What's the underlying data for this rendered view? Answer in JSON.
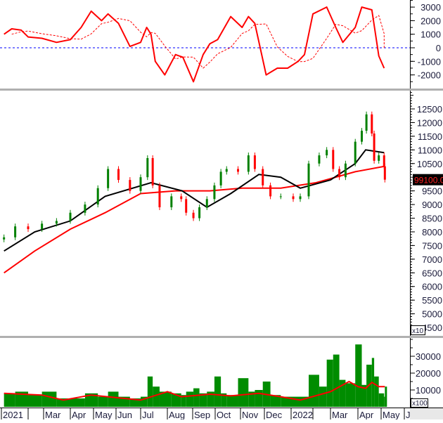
{
  "chart_data": {
    "type": "candlestick-with-indicators",
    "grid": false,
    "month_ticks": [
      {
        "date": "2021-01-01",
        "label": "2021"
      },
      {
        "date": "2021-02-01",
        "label": ""
      },
      {
        "date": "2021-03-01",
        "label": "Mar"
      },
      {
        "date": "2021-04-01",
        "label": "Apr"
      },
      {
        "date": "2021-05-01",
        "label": "May"
      },
      {
        "date": "2021-06-01",
        "label": "Jun"
      },
      {
        "date": "2021-07-01",
        "label": "Jul"
      },
      {
        "date": "2021-08-01",
        "label": "Aug"
      },
      {
        "date": "2021-09-01",
        "label": "Sep"
      },
      {
        "date": "2021-10-01",
        "label": "Oct"
      },
      {
        "date": "2021-11-01",
        "label": "Nov"
      },
      {
        "date": "2021-12-01",
        "label": "Dec"
      },
      {
        "date": "2022-01-01",
        "label": "2022"
      },
      {
        "date": "2022-02-01",
        "label": ""
      },
      {
        "date": "2022-03-01",
        "label": "Mar"
      },
      {
        "date": "2022-04-01",
        "label": "Apr"
      },
      {
        "date": "2022-05-01",
        "label": "May"
      },
      {
        "date": "2022-06-01",
        "label": "J"
      }
    ],
    "macd_panel": {
      "ylim": [
        -2500,
        3500
      ],
      "ticks": [
        3000,
        2000,
        1000,
        0,
        -1000,
        -2000
      ],
      "zero_line_color": "#0000ff",
      "line_color": "#ff0000",
      "macd": [
        [
          "2021-01-04",
          1000
        ],
        [
          "2021-01-13",
          1400
        ],
        [
          "2021-01-24",
          1300
        ],
        [
          "2021-02-01",
          800
        ],
        [
          "2021-02-26",
          700
        ],
        [
          "2021-03-16",
          400
        ],
        [
          "2021-04-01",
          600
        ],
        [
          "2021-04-15",
          1500
        ],
        [
          "2021-04-28",
          2700
        ],
        [
          "2021-05-12",
          2000
        ],
        [
          "2021-05-21",
          2500
        ],
        [
          "2021-06-04",
          1800
        ],
        [
          "2021-06-18",
          100
        ],
        [
          "2021-07-01",
          400
        ],
        [
          "2021-07-08",
          1500
        ],
        [
          "2021-07-13",
          1000
        ],
        [
          "2021-07-18",
          -1000
        ],
        [
          "2021-07-29",
          -2000
        ],
        [
          "2021-08-11",
          -500
        ],
        [
          "2021-08-20",
          -700
        ],
        [
          "2021-09-02",
          -2500
        ],
        [
          "2021-09-15",
          -500
        ],
        [
          "2021-09-24",
          300
        ],
        [
          "2021-10-04",
          600
        ],
        [
          "2021-10-20",
          2300
        ],
        [
          "2021-11-03",
          1500
        ],
        [
          "2021-11-11",
          2300
        ],
        [
          "2021-11-19",
          1800
        ],
        [
          "2021-12-03",
          -2000
        ],
        [
          "2021-12-16",
          -1500
        ],
        [
          "2021-12-28",
          -1500
        ],
        [
          "2022-01-11",
          -1000
        ],
        [
          "2022-01-20",
          -500
        ],
        [
          "2022-02-01",
          2500
        ],
        [
          "2022-02-23",
          3000
        ],
        [
          "2022-03-07",
          1500
        ],
        [
          "2022-03-15",
          400
        ],
        [
          "2022-03-29",
          1500
        ],
        [
          "2022-04-06",
          3000
        ],
        [
          "2022-04-19",
          2800
        ],
        [
          "2022-04-28",
          -600
        ],
        [
          "2022-05-05",
          -1500
        ]
      ]
    },
    "price_panel": {
      "ylim": [
        4300,
        13100
      ],
      "ticks": [
        12500,
        12000,
        11500,
        11000,
        10500,
        9500,
        9000,
        8500,
        8000,
        7500,
        7000,
        6500,
        6000,
        5500,
        5000,
        4500
      ],
      "multiplier_label": "x10",
      "last_price_label": "99100.00",
      "up_color": "#008000",
      "down_color": "#ff0000",
      "close": [
        [
          "2021-01-04",
          7800
        ],
        [
          "2021-01-17",
          8200
        ],
        [
          "2021-02-01",
          8100
        ],
        [
          "2021-02-26",
          8300
        ],
        [
          "2021-03-16",
          8400
        ],
        [
          "2021-04-01",
          8700
        ],
        [
          "2021-04-20",
          9000
        ],
        [
          "2021-05-07",
          9600
        ],
        [
          "2021-05-21",
          10300
        ],
        [
          "2021-06-04",
          9900
        ],
        [
          "2021-06-18",
          9500
        ],
        [
          "2021-07-01",
          10000
        ],
        [
          "2021-07-09",
          10700
        ],
        [
          "2021-07-15",
          9700
        ],
        [
          "2021-07-23",
          8900
        ],
        [
          "2021-08-06",
          9300
        ],
        [
          "2021-08-18",
          9200
        ],
        [
          "2021-08-24",
          8700
        ],
        [
          "2021-09-02",
          8500
        ],
        [
          "2021-09-10",
          8900
        ],
        [
          "2021-09-20",
          9200
        ],
        [
          "2021-09-30",
          9700
        ],
        [
          "2021-10-08",
          10200
        ],
        [
          "2021-10-15",
          10300
        ],
        [
          "2021-10-29",
          10200
        ],
        [
          "2021-11-11",
          10800
        ],
        [
          "2021-11-19",
          10300
        ],
        [
          "2021-11-29",
          9700
        ],
        [
          "2021-12-08",
          9300
        ],
        [
          "2021-12-20",
          9300
        ],
        [
          "2022-01-04",
          9200
        ],
        [
          "2022-01-14",
          9300
        ],
        [
          "2022-01-26",
          10500
        ],
        [
          "2022-02-11",
          10800
        ],
        [
          "2022-02-23",
          11000
        ],
        [
          "2022-03-04",
          10300
        ],
        [
          "2022-03-11",
          10000
        ],
        [
          "2022-03-18",
          10500
        ],
        [
          "2022-03-29",
          11300
        ],
        [
          "2022-04-06",
          11700
        ],
        [
          "2022-04-12",
          12300
        ],
        [
          "2022-04-19",
          11600
        ],
        [
          "2022-04-22",
          10600
        ],
        [
          "2022-04-28",
          10800
        ],
        [
          "2022-05-05",
          10400
        ],
        [
          "2022-05-06",
          9910
        ]
      ],
      "ma_black": [
        [
          "2021-01-04",
          7300
        ],
        [
          "2021-02-13",
          8000
        ],
        [
          "2021-04-01",
          8400
        ],
        [
          "2021-05-17",
          9300
        ],
        [
          "2021-07-13",
          9800
        ],
        [
          "2021-08-19",
          9500
        ],
        [
          "2021-09-20",
          8900
        ],
        [
          "2021-10-20",
          9400
        ],
        [
          "2021-11-24",
          10100
        ],
        [
          "2021-12-20",
          10000
        ],
        [
          "2022-01-14",
          9600
        ],
        [
          "2022-03-01",
          9900
        ],
        [
          "2022-03-29",
          10500
        ],
        [
          "2022-04-11",
          11000
        ],
        [
          "2022-05-05",
          10900
        ]
      ],
      "ma_red": [
        [
          "2021-01-04",
          6500
        ],
        [
          "2021-02-13",
          7300
        ],
        [
          "2021-04-01",
          8100
        ],
        [
          "2021-05-17",
          8700
        ],
        [
          "2021-07-01",
          9400
        ],
        [
          "2021-08-11",
          9500
        ],
        [
          "2021-09-24",
          9500
        ],
        [
          "2021-11-03",
          9600
        ],
        [
          "2021-12-20",
          9600
        ],
        [
          "2022-02-06",
          9800
        ],
        [
          "2022-03-29",
          10200
        ],
        [
          "2022-05-06",
          10400
        ]
      ]
    },
    "volume_panel": {
      "ylim": [
        0,
        40000
      ],
      "ticks": [
        30000,
        20000,
        10000
      ],
      "multiplier_label": "x100",
      "bar_color": "#008c00",
      "ma_color": "#ff0000",
      "volume": [
        [
          "2021-01-04",
          8000
        ],
        [
          "2021-01-17",
          9000
        ],
        [
          "2021-02-01",
          7000
        ],
        [
          "2021-02-26",
          9000
        ],
        [
          "2021-03-16",
          5000
        ],
        [
          "2021-04-01",
          5000
        ],
        [
          "2021-04-20",
          8000
        ],
        [
          "2021-05-07",
          6000
        ],
        [
          "2021-05-21",
          9000
        ],
        [
          "2021-06-04",
          6000
        ],
        [
          "2021-06-18",
          5000
        ],
        [
          "2021-07-01",
          6000
        ],
        [
          "2021-07-09",
          18000
        ],
        [
          "2021-07-15",
          12000
        ],
        [
          "2021-07-23",
          9000
        ],
        [
          "2021-08-06",
          8000
        ],
        [
          "2021-08-18",
          7000
        ],
        [
          "2021-08-24",
          9000
        ],
        [
          "2021-09-02",
          11000
        ],
        [
          "2021-09-10",
          8000
        ],
        [
          "2021-09-20",
          9000
        ],
        [
          "2021-09-30",
          18000
        ],
        [
          "2021-10-08",
          8000
        ],
        [
          "2021-10-15",
          7000
        ],
        [
          "2021-10-29",
          17000
        ],
        [
          "2021-11-11",
          9000
        ],
        [
          "2021-11-19",
          10000
        ],
        [
          "2021-11-29",
          15000
        ],
        [
          "2021-12-08",
          7000
        ],
        [
          "2021-12-20",
          6000
        ],
        [
          "2022-01-04",
          6000
        ],
        [
          "2022-01-14",
          6000
        ],
        [
          "2022-01-26",
          19000
        ],
        [
          "2022-02-11",
          12000
        ],
        [
          "2022-02-23",
          28000
        ],
        [
          "2022-03-04",
          31000
        ],
        [
          "2022-03-11",
          16000
        ],
        [
          "2022-03-18",
          14000
        ],
        [
          "2022-03-29",
          37000
        ],
        [
          "2022-04-06",
          13000
        ],
        [
          "2022-04-12",
          25000
        ],
        [
          "2022-04-19",
          29000
        ],
        [
          "2022-04-22",
          18000
        ],
        [
          "2022-04-28",
          8000
        ],
        [
          "2022-05-05",
          6000
        ],
        [
          "2022-05-06",
          12000
        ]
      ],
      "ma": [
        [
          "2021-01-04",
          8000
        ],
        [
          "2021-02-26",
          7000
        ],
        [
          "2021-03-24",
          4000
        ],
        [
          "2021-04-28",
          7000
        ],
        [
          "2021-07-01",
          4000
        ],
        [
          "2021-08-01",
          9000
        ],
        [
          "2021-08-18",
          6000
        ],
        [
          "2021-09-24",
          7500
        ],
        [
          "2021-10-20",
          6500
        ],
        [
          "2021-11-24",
          8000
        ],
        [
          "2021-12-20",
          6000
        ],
        [
          "2022-01-14",
          4000
        ],
        [
          "2022-03-01",
          9000
        ],
        [
          "2022-03-15",
          13000
        ],
        [
          "2022-03-22",
          15000
        ],
        [
          "2022-04-01",
          12000
        ],
        [
          "2022-04-11",
          11000
        ],
        [
          "2022-04-19",
          14500
        ],
        [
          "2022-04-28",
          12000
        ],
        [
          "2022-05-06",
          12000
        ]
      ]
    }
  }
}
